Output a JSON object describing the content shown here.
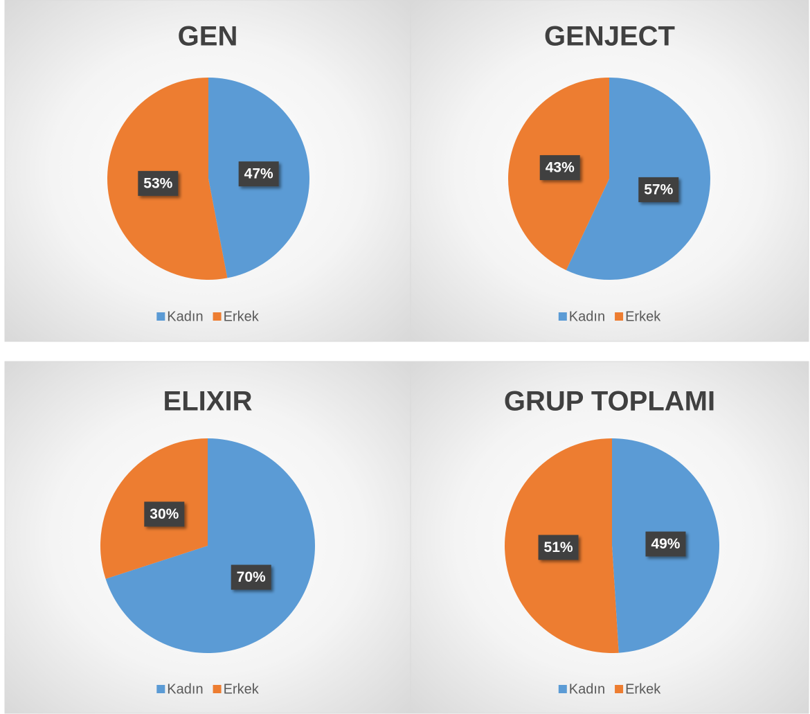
{
  "chart_data": [
    {
      "type": "pie",
      "title": "GEN",
      "categories": [
        "Kadın",
        "Erkek"
      ],
      "values": [
        47,
        53
      ],
      "value_labels": [
        "47%",
        "53%"
      ],
      "colors": [
        "#5b9bd5",
        "#ed7d31"
      ],
      "legend": "bottom"
    },
    {
      "type": "pie",
      "title": "GENJECT",
      "categories": [
        "Kadın",
        "Erkek"
      ],
      "values": [
        57,
        43
      ],
      "value_labels": [
        "57%",
        "43%"
      ],
      "colors": [
        "#5b9bd5",
        "#ed7d31"
      ],
      "legend": "bottom"
    },
    {
      "type": "pie",
      "title": "ELIXIR",
      "categories": [
        "Kadın",
        "Erkek"
      ],
      "values": [
        70,
        30
      ],
      "value_labels": [
        "70%",
        "30%"
      ],
      "colors": [
        "#5b9bd5",
        "#ed7d31"
      ],
      "legend": "bottom"
    },
    {
      "type": "pie",
      "title": "GRUP TOPLAMI",
      "categories": [
        "Kadın",
        "Erkek"
      ],
      "values": [
        49,
        51
      ],
      "value_labels": [
        "49%",
        "51%"
      ],
      "colors": [
        "#5b9bd5",
        "#ed7d31"
      ],
      "legend": "bottom"
    }
  ]
}
